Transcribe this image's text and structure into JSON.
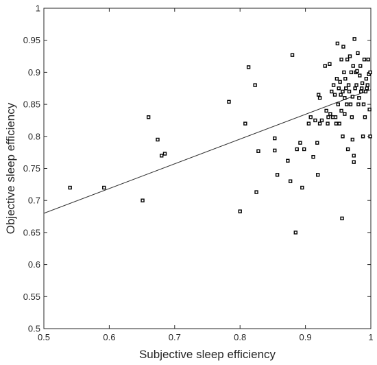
{
  "chart_data": {
    "type": "scatter",
    "title": "",
    "xlabel": "Subjective sleep efficiency",
    "ylabel": "Objective sleep efficiency",
    "xlim": [
      0.5,
      1.0
    ],
    "ylim": [
      0.5,
      1.0
    ],
    "x_ticks": [
      0.5,
      0.6,
      0.7,
      0.8,
      0.9,
      1.0
    ],
    "x_tick_labels": [
      "0.5",
      "0.6",
      "0.7",
      "0.8",
      "0.9",
      "1"
    ],
    "y_ticks": [
      0.5,
      0.55,
      0.6,
      0.65,
      0.7,
      0.75,
      0.8,
      0.85,
      0.9,
      0.95,
      1.0
    ],
    "y_tick_labels": [
      "0.5",
      "0.55",
      "0.6",
      "0.65",
      "0.7",
      "0.75",
      "0.8",
      "0.85",
      "0.9",
      "0.95",
      "1"
    ],
    "grid": false,
    "marker": "open-square",
    "colors": {
      "marker": "#000000",
      "axis": "#262626",
      "fit_line": "#333333"
    },
    "fit_line": {
      "x": [
        0.5,
        1.0
      ],
      "y": [
        0.68,
        0.873
      ]
    },
    "series": [
      {
        "points": [
          [
            0.54,
            0.72
          ],
          [
            0.592,
            0.72
          ],
          [
            0.651,
            0.7
          ],
          [
            0.66,
            0.83
          ],
          [
            0.674,
            0.795
          ],
          [
            0.68,
            0.77
          ],
          [
            0.685,
            0.773
          ],
          [
            0.783,
            0.854
          ],
          [
            0.8,
            0.683
          ],
          [
            0.808,
            0.82
          ],
          [
            0.813,
            0.908
          ],
          [
            0.823,
            0.88
          ],
          [
            0.825,
            0.713
          ],
          [
            0.828,
            0.777
          ],
          [
            0.853,
            0.778
          ],
          [
            0.853,
            0.797
          ],
          [
            0.857,
            0.74
          ],
          [
            0.873,
            0.762
          ],
          [
            0.877,
            0.73
          ],
          [
            0.88,
            0.927
          ],
          [
            0.885,
            0.65
          ],
          [
            0.887,
            0.78
          ],
          [
            0.892,
            0.79
          ],
          [
            0.895,
            0.72
          ],
          [
            0.898,
            0.78
          ],
          [
            0.905,
            0.82
          ],
          [
            0.908,
            0.83
          ],
          [
            0.912,
            0.768
          ],
          [
            0.915,
            0.825
          ],
          [
            0.918,
            0.79
          ],
          [
            0.919,
            0.74
          ],
          [
            0.92,
            0.865
          ],
          [
            0.922,
            0.86
          ],
          [
            0.922,
            0.82
          ],
          [
            0.925,
            0.825
          ],
          [
            0.93,
            0.91
          ],
          [
            0.932,
            0.84
          ],
          [
            0.934,
            0.82
          ],
          [
            0.935,
            0.83
          ],
          [
            0.937,
            0.913
          ],
          [
            0.938,
            0.835
          ],
          [
            0.94,
            0.87
          ],
          [
            0.942,
            0.83
          ],
          [
            0.943,
            0.88
          ],
          [
            0.945,
            0.865
          ],
          [
            0.946,
            0.83
          ],
          [
            0.947,
            0.82
          ],
          [
            0.948,
            0.89
          ],
          [
            0.949,
            0.945
          ],
          [
            0.95,
            0.85
          ],
          [
            0.951,
            0.875
          ],
          [
            0.952,
            0.82
          ],
          [
            0.953,
            0.885
          ],
          [
            0.954,
            0.865
          ],
          [
            0.955,
            0.84
          ],
          [
            0.955,
            0.92
          ],
          [
            0.956,
            0.672
          ],
          [
            0.957,
            0.87
          ],
          [
            0.957,
            0.8
          ],
          [
            0.958,
            0.94
          ],
          [
            0.959,
            0.9
          ],
          [
            0.96,
            0.86
          ],
          [
            0.96,
            0.835
          ],
          [
            0.961,
            0.89
          ],
          [
            0.962,
            0.875
          ],
          [
            0.963,
            0.85
          ],
          [
            0.964,
            0.92
          ],
          [
            0.965,
            0.78
          ],
          [
            0.966,
            0.88
          ],
          [
            0.967,
            0.87
          ],
          [
            0.968,
            0.925
          ],
          [
            0.969,
            0.85
          ],
          [
            0.97,
            0.9
          ],
          [
            0.971,
            0.83
          ],
          [
            0.972,
            0.862
          ],
          [
            0.972,
            0.795
          ],
          [
            0.973,
            0.91
          ],
          [
            0.974,
            0.76
          ],
          [
            0.974,
            0.77
          ],
          [
            0.975,
            0.952
          ],
          [
            0.976,
            0.875
          ],
          [
            0.977,
            0.9
          ],
          [
            0.978,
            0.88
          ],
          [
            0.979,
            0.902
          ],
          [
            0.98,
            0.93
          ],
          [
            0.981,
            0.85
          ],
          [
            0.982,
            0.86
          ],
          [
            0.983,
            0.895
          ],
          [
            0.984,
            0.91
          ],
          [
            0.985,
            0.87
          ],
          [
            0.986,
            0.875
          ],
          [
            0.987,
            0.883
          ],
          [
            0.988,
            0.8
          ],
          [
            0.989,
            0.85
          ],
          [
            0.99,
            0.92
          ],
          [
            0.991,
            0.83
          ],
          [
            0.992,
            0.87
          ],
          [
            0.993,
            0.89
          ],
          [
            0.994,
            0.875
          ],
          [
            0.995,
            0.88
          ],
          [
            0.996,
            0.92
          ],
          [
            0.997,
            0.897
          ],
          [
            0.998,
            0.842
          ],
          [
            0.999,
            0.8
          ],
          [
            0.999,
            0.9
          ]
        ]
      }
    ]
  }
}
